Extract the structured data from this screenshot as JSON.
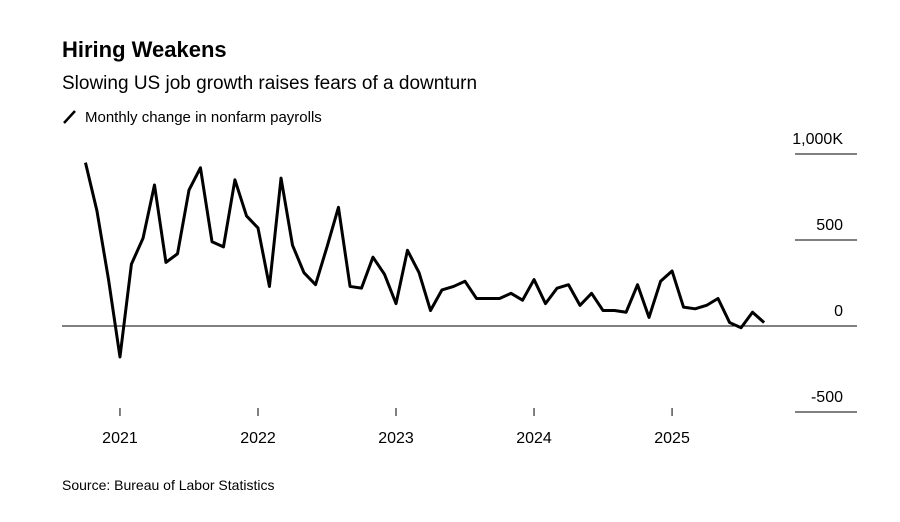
{
  "chart_data": {
    "type": "line",
    "title": "Hiring Weakens",
    "subtitle": "Slowing US job growth raises fears of a downturn",
    "source": "Source: Bureau of Labor Statistics",
    "xlim": [
      2020.58,
      2026.34
    ],
    "xticks": [
      2021,
      2022,
      2023,
      2024,
      2025
    ],
    "ylim": [
      -500,
      1000
    ],
    "yticks": [
      {
        "value": 1000,
        "label": "1,000K"
      },
      500,
      0,
      -500
    ],
    "x": [
      2020.75,
      2020.833,
      2020.917,
      2021,
      2021.083,
      2021.167,
      2021.25,
      2021.333,
      2021.417,
      2021.5,
      2021.583,
      2021.667,
      2021.75,
      2021.833,
      2021.917,
      2022,
      2022.083,
      2022.167,
      2022.25,
      2022.333,
      2022.417,
      2022.5,
      2022.583,
      2022.667,
      2022.75,
      2022.833,
      2022.917,
      2023,
      2023.083,
      2023.167,
      2023.25,
      2023.333,
      2023.417,
      2023.5,
      2023.583,
      2023.667,
      2023.75,
      2023.833,
      2023.917,
      2024,
      2024.083,
      2024.167,
      2024.25,
      2024.333,
      2024.417,
      2024.5,
      2024.583,
      2024.667,
      2024.75,
      2024.833,
      2024.917,
      2025,
      2025.083,
      2025.167,
      2025.25,
      2025.333,
      2025.417,
      2025.5,
      2025.583,
      2025.667
    ],
    "series": [
      {
        "name": "Monthly change in nonfarm payrolls",
        "color": "#000000",
        "values": [
          950,
          670,
          270,
          -180,
          360,
          510,
          820,
          370,
          420,
          790,
          920,
          490,
          460,
          850,
          640,
          570,
          230,
          860,
          470,
          310,
          240,
          460,
          690,
          230,
          220,
          400,
          300,
          130,
          440,
          310,
          90,
          210,
          230,
          260,
          160,
          160,
          160,
          190,
          150,
          270,
          130,
          220,
          240,
          120,
          190,
          90,
          90,
          80,
          240,
          50,
          260,
          320,
          110,
          100,
          120,
          160,
          20,
          -10,
          80,
          20
        ]
      }
    ]
  }
}
